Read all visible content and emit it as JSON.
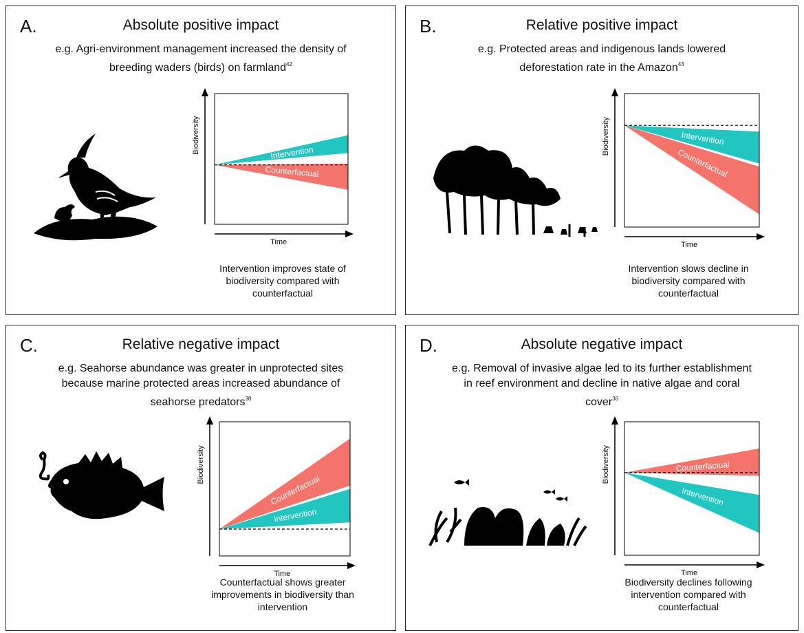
{
  "colors": {
    "intervention": "#22c6c0",
    "counterfactual": "#f4736a"
  },
  "panels": [
    {
      "letter": "A.",
      "title": "Absolute positive impact",
      "example_text": "e.g. Agri-environment management increased the density of breeding waders (birds) on farmland",
      "ref": "42",
      "caption": "Intervention improves state of biodiversity compared with counterfactual",
      "illustration": "lapwing-bird-with-chick",
      "chart": {
        "y_axis_label": "Biodiversity",
        "x_axis_label": "Time",
        "series": [
          {
            "name": "Intervention",
            "trend": "increase",
            "top": 0.5,
            "bottom": 0.2
          },
          {
            "name": "Counterfactual",
            "trend": "mixed",
            "top": 0.02,
            "bottom": -0.42
          }
        ],
        "baseline": 0
      }
    },
    {
      "letter": "B.",
      "title": "Relative positive impact",
      "example_text": "e.g. Protected areas and indigenous lands lowered deforestation rate in the Amazon",
      "ref": "43",
      "caption": "Intervention slows decline in biodiversity compared with counterfactual",
      "illustration": "rainforest-trees",
      "chart": {
        "y_axis_label": "Biodiversity",
        "x_axis_label": "Time",
        "series": [
          {
            "name": "Intervention",
            "trend": "decrease",
            "top": -0.1,
            "bottom": -0.6
          },
          {
            "name": "Counterfactual",
            "trend": "decrease",
            "top": -0.65,
            "bottom": -1.4
          }
        ],
        "baseline": 0
      }
    },
    {
      "letter": "C.",
      "title": "Relative negative impact",
      "example_text": "e.g. Seahorse abundance was greater in unprotected sites because marine protected areas increased abundance of seahorse predators",
      "ref": "38",
      "caption": "Counterfactual shows greater improvements in biodiversity than intervention",
      "illustration": "seahorse-and-scorpionfish",
      "chart": {
        "y_axis_label": "Biodiversity",
        "x_axis_label": "Time",
        "series": [
          {
            "name": "Counterfactual",
            "trend": "increase",
            "top": 1.35,
            "bottom": 0.65
          },
          {
            "name": "Intervention",
            "trend": "increase",
            "top": 0.6,
            "bottom": 0.1
          }
        ],
        "baseline": 0
      }
    },
    {
      "letter": "D.",
      "title": "Absolute negative impact",
      "example_text": "e.g. Removal of invasive algae led to its further establishment in reef environment and decline in native algae and coral cover",
      "ref": "36",
      "caption": "Biodiversity declines following intervention compared with counterfactual",
      "illustration": "coral-reef-with-fish",
      "chart": {
        "y_axis_label": "Biodiversity",
        "x_axis_label": "Time",
        "series": [
          {
            "name": "Counterfactual",
            "trend": "mixed",
            "top": 0.38,
            "bottom": -0.05
          },
          {
            "name": "Intervention",
            "trend": "decrease",
            "top": -0.35,
            "bottom": -0.95
          }
        ],
        "baseline": 0
      }
    }
  ]
}
